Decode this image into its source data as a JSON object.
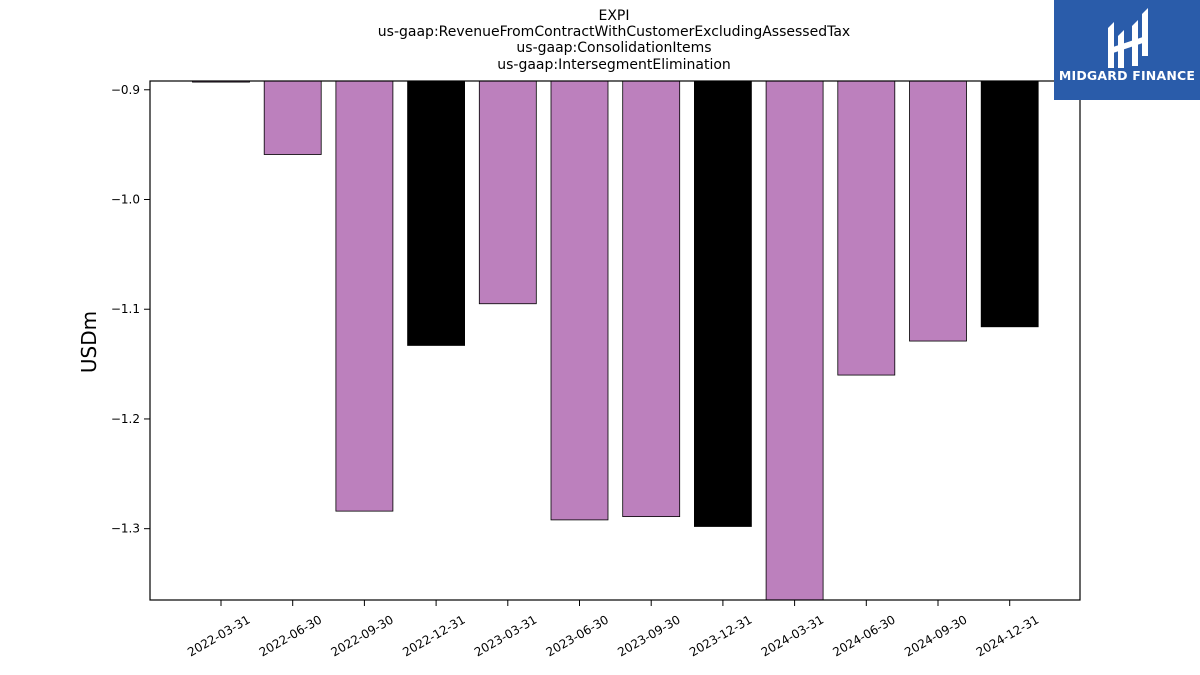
{
  "title_lines": [
    "EXPI",
    "us-gaap:RevenueFromContractWithCustomerExcludingAssessedTax",
    "us-gaap:ConsolidationItems",
    "us-gaap:IntersegmentElimination"
  ],
  "logo": {
    "text": "MIDGARD FINANCE",
    "background": "#2a5caa"
  },
  "chart_data": {
    "type": "bar",
    "categories": [
      "2022-03-31",
      "2022-06-30",
      "2022-09-30",
      "2022-12-31",
      "2023-03-31",
      "2023-06-30",
      "2023-09-30",
      "2023-12-31",
      "2024-03-31",
      "2024-06-30",
      "2024-09-30",
      "2024-12-31"
    ],
    "values": [
      -0.893,
      -0.959,
      -1.284,
      -1.133,
      -1.095,
      -1.292,
      -1.289,
      -1.298,
      -1.365,
      -1.16,
      -1.129,
      -1.116
    ],
    "bar_colors": [
      "#bc80bd",
      "#bc80bd",
      "#bc80bd",
      "#000000",
      "#bc80bd",
      "#bc80bd",
      "#bc80bd",
      "#000000",
      "#bc80bd",
      "#bc80bd",
      "#bc80bd",
      "#000000"
    ],
    "ylabel": "USDm",
    "xlabel": "",
    "ylim": [
      -1.365,
      -0.892
    ],
    "yticks": [
      -0.9,
      -1.0,
      -1.1,
      -1.2,
      -1.3
    ],
    "ytick_labels": [
      "−0.9",
      "−1.0",
      "−1.1",
      "−1.2",
      "−1.3"
    ],
    "bar_baseline": "top",
    "grid": false,
    "legend": "none"
  }
}
